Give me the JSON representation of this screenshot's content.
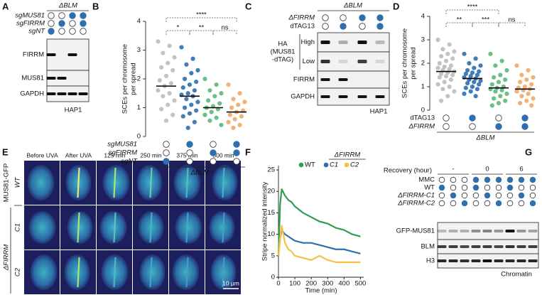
{
  "panels": [
    {
      "label": "A",
      "header": "ΔBLM",
      "rows": [
        {
          "name": "sgMUS81",
          "lanes": [
            0,
            0,
            1,
            1
          ]
        },
        {
          "name": "sgFIRRM",
          "lanes": [
            0,
            1,
            0,
            1
          ]
        },
        {
          "name": "sgNT",
          "lanes": [
            1,
            0,
            0,
            0
          ]
        }
      ],
      "blots": [
        "FIRRM",
        "MUS81",
        "GAPDH"
      ],
      "cell_line": "HAP1"
    },
    {
      "label": "C",
      "header": "ΔBLM",
      "rows": [
        {
          "name": "ΔFIRRM",
          "lanes": [
            0,
            0,
            1,
            1
          ]
        },
        {
          "name": "dTAG13",
          "lanes": [
            0,
            1,
            0,
            1
          ]
        }
      ],
      "ha_label": [
        "HA",
        "(MUS81",
        "-dTAG)"
      ],
      "exposures": [
        "High",
        "Low"
      ],
      "blots": [
        "FIRRM",
        "GAPDH"
      ],
      "cell_line": "HAP1"
    },
    {
      "label": "E",
      "columns": [
        "Before UVA",
        "After UVA",
        "125 min",
        "250 min",
        "375 min",
        "500 min"
      ],
      "rows": [
        "WT",
        "C1",
        "C2"
      ],
      "protein": "MUS81-GFP",
      "group": "ΔFIRRM",
      "scale_bar": "10 µm"
    },
    {
      "label": "G",
      "header": "Recovery (hour)",
      "timepoints": [
        "-",
        "0",
        "6"
      ],
      "rows": [
        {
          "name": "MMC",
          "lanes": [
            0,
            0,
            0,
            1,
            1,
            1,
            1,
            1,
            1
          ]
        },
        {
          "name": "WT",
          "lanes": [
            1,
            0,
            0,
            1,
            0,
            0,
            1,
            0,
            0
          ]
        },
        {
          "name": "ΔFIRRM-C1",
          "lanes": [
            0,
            1,
            0,
            0,
            1,
            0,
            0,
            1,
            0
          ]
        },
        {
          "name": "ΔFIRRM-C2",
          "lanes": [
            0,
            0,
            1,
            0,
            0,
            1,
            0,
            0,
            1
          ]
        }
      ],
      "blots": [
        "GFP-MUS81",
        "BLM",
        "H3"
      ],
      "fraction": "Chromatin"
    }
  ],
  "chart_data": [
    {
      "type": "strip",
      "label": "B",
      "y_label": [
        "SCEs per chromosome",
        "per spread"
      ],
      "ylim": [
        0,
        4
      ],
      "yticks": [
        0,
        1,
        2,
        3,
        4
      ],
      "series": [
        {
          "color": "#bdbdbd",
          "mean": 1.75,
          "values": [
            3.3,
            3.15,
            2.9,
            2.75,
            2.55,
            2.4,
            2.3,
            2.1,
            1.95,
            1.85,
            1.75,
            1.6,
            1.5,
            1.4,
            1.25,
            1.1,
            0.95,
            0.75,
            0.55
          ]
        },
        {
          "color": "#2f6fad",
          "mean": 1.4,
          "values": [
            3.1,
            2.7,
            2.5,
            2.3,
            2.2,
            2.0,
            1.9,
            1.8,
            1.7,
            1.6,
            1.5,
            1.45,
            1.4,
            1.3,
            1.2,
            1.1,
            1.0,
            0.9,
            0.8,
            0.7,
            0.5,
            0.3
          ]
        },
        {
          "color": "#5cb87a",
          "mean": 1.0,
          "values": [
            2.0,
            1.8,
            1.6,
            1.5,
            1.4,
            1.25,
            1.15,
            1.05,
            1.0,
            0.95,
            0.85,
            0.75,
            0.65,
            0.55,
            0.4
          ]
        },
        {
          "color": "#f0a868",
          "mean": 0.85,
          "values": [
            1.8,
            1.5,
            1.3,
            1.2,
            1.1,
            1.0,
            0.9,
            0.85,
            0.75,
            0.7,
            0.6,
            0.5,
            0.4,
            0.3
          ]
        }
      ],
      "comparisons": [
        {
          "groups": [
            0,
            3
          ],
          "label": "****"
        },
        {
          "groups": [
            0,
            1
          ],
          "label": "*"
        },
        {
          "groups": [
            1,
            2
          ],
          "label": "**"
        },
        {
          "groups": [
            2,
            3
          ],
          "label": "ns"
        }
      ],
      "conditions": [
        {
          "name": "sgMUS81",
          "lanes": [
            0,
            1,
            0,
            1
          ]
        },
        {
          "name": "sgFIRRM",
          "lanes": [
            0,
            0,
            1,
            1
          ]
        },
        {
          "name": "sgNT",
          "lanes": [
            1,
            0,
            0,
            0
          ]
        }
      ],
      "group_label": "ΔBLM"
    },
    {
      "type": "strip",
      "label": "D",
      "y_label": [
        "SCEs per chromosome",
        "per spread"
      ],
      "ylim": [
        0,
        4
      ],
      "yticks": [
        0,
        1,
        2,
        3,
        4
      ],
      "series": [
        {
          "color": "#bdbdbd",
          "mean": 1.65,
          "values": [
            3.0,
            2.8,
            2.6,
            2.5,
            2.4,
            2.3,
            2.2,
            2.1,
            2.0,
            1.9,
            1.85,
            1.8,
            1.75,
            1.7,
            1.65,
            1.6,
            1.55,
            1.5,
            1.45,
            1.4,
            1.3,
            1.2,
            1.1,
            1.0,
            0.9,
            0.8,
            0.6,
            0.4
          ]
        },
        {
          "color": "#2f6fad",
          "mean": 1.35,
          "values": [
            2.4,
            2.2,
            2.0,
            1.9,
            1.8,
            1.7,
            1.65,
            1.6,
            1.55,
            1.5,
            1.45,
            1.4,
            1.35,
            1.3,
            1.25,
            1.2,
            1.15,
            1.1,
            1.0,
            0.95,
            0.9,
            0.8,
            0.7,
            0.6
          ]
        },
        {
          "color": "#5cb87a",
          "mean": 0.95,
          "values": [
            2.4,
            2.1,
            1.9,
            1.7,
            1.5,
            1.4,
            1.3,
            1.2,
            1.1,
            1.0,
            0.95,
            0.9,
            0.85,
            0.8,
            0.7,
            0.6,
            0.5,
            0.4,
            0.3,
            0.2
          ]
        },
        {
          "color": "#f0a868",
          "mean": 0.9,
          "values": [
            1.9,
            1.7,
            1.5,
            1.4,
            1.3,
            1.2,
            1.1,
            1.0,
            0.95,
            0.9,
            0.85,
            0.8,
            0.7,
            0.6,
            0.5,
            0.4,
            0.3,
            0.2
          ]
        }
      ],
      "comparisons": [
        {
          "groups": [
            0,
            2
          ],
          "label": "****"
        },
        {
          "groups": [
            0,
            1
          ],
          "label": "**"
        },
        {
          "groups": [
            1,
            2
          ],
          "label": "***"
        },
        {
          "groups": [
            2,
            3
          ],
          "label": "ns"
        }
      ],
      "conditions": [
        {
          "name": "dTAG13",
          "lanes": [
            0,
            1,
            0,
            1
          ]
        },
        {
          "name": "ΔFIRRM",
          "lanes": [
            0,
            0,
            1,
            1
          ]
        }
      ],
      "group_label": "ΔBLM"
    },
    {
      "type": "line",
      "label": "F",
      "x_label": "Time (min)",
      "y_label": "Stripe normalized intensity",
      "legend_title": "ΔFIRRM",
      "x": [
        0,
        10,
        20,
        40,
        60,
        80,
        100,
        150,
        200,
        250,
        300,
        350,
        400,
        450,
        500
      ],
      "xlim": [
        0,
        520
      ],
      "xticks": [
        0,
        100,
        200,
        300,
        400,
        500
      ],
      "ylim": [
        0,
        26
      ],
      "yticks": [
        0,
        5,
        10,
        15,
        20,
        25
      ],
      "series": [
        {
          "name": "WT",
          "color": "#2e9e4f",
          "values": [
            5,
            17,
            20.5,
            19,
            18,
            17.5,
            16.5,
            15,
            14,
            13,
            12.5,
            11.5,
            11,
            10,
            9.5
          ]
        },
        {
          "name": "C1",
          "color": "#2f6fad",
          "values": [
            5,
            9,
            11,
            10,
            9.5,
            9,
            8.5,
            8,
            8,
            7.5,
            7,
            6.5,
            6.5,
            6,
            5.5
          ]
        },
        {
          "name": "C2",
          "color": "#f5c242",
          "values": [
            5,
            9,
            12,
            8,
            6.5,
            6,
            5,
            4.5,
            4,
            5,
            4,
            3.5,
            3.5,
            3.5,
            3.5
          ]
        }
      ]
    }
  ]
}
